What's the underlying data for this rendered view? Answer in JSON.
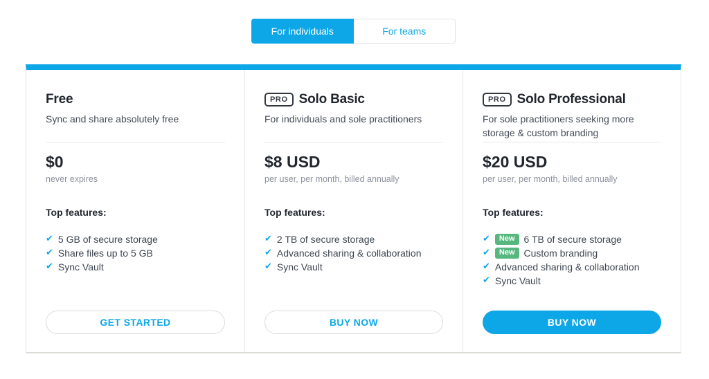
{
  "colors": {
    "accent_blue": "#0da7e8",
    "new_badge_green": "#56b87e",
    "title_text": "#21262e",
    "body_text": "#3e4650",
    "muted_text": "#8d929b"
  },
  "icons": {
    "check_icon": "✔"
  },
  "tabs": {
    "individuals_label": "For individuals",
    "teams_label": "For teams",
    "active": "For individuals"
  },
  "plans": [
    {
      "title": "Free",
      "description": "Sync and share absolutely free",
      "price": "$0",
      "price_note": "never expires",
      "features_heading": "Top features:",
      "features": [
        {
          "text": "5 GB of secure storage"
        },
        {
          "text": "Share files up to 5 GB"
        },
        {
          "text": "Sync Vault"
        }
      ],
      "cta_label": "GET STARTED",
      "cta_style": "outline"
    },
    {
      "badge": "PRO",
      "title": "Solo Basic",
      "description": "For individuals and sole practitioners",
      "price": "$8 USD",
      "price_note": "per user, per month, billed annually",
      "features_heading": "Top features:",
      "features": [
        {
          "text": "2 TB of secure storage"
        },
        {
          "text": "Advanced sharing & collaboration"
        },
        {
          "text": "Sync Vault"
        }
      ],
      "cta_label": "BUY NOW",
      "cta_style": "outline"
    },
    {
      "badge": "PRO",
      "title": "Solo Professional",
      "description": "For sole practitioners seeking more storage & custom branding",
      "price": "$20 USD",
      "price_note": "per user, per month, billed annually",
      "features_heading": "Top features:",
      "features": [
        {
          "tag": "New",
          "text": "6 TB of secure storage"
        },
        {
          "tag": "New",
          "text": "Custom branding"
        },
        {
          "text": "Advanced sharing & collaboration"
        },
        {
          "text": "Sync Vault"
        }
      ],
      "cta_label": "BUY NOW",
      "cta_style": "solid"
    }
  ]
}
